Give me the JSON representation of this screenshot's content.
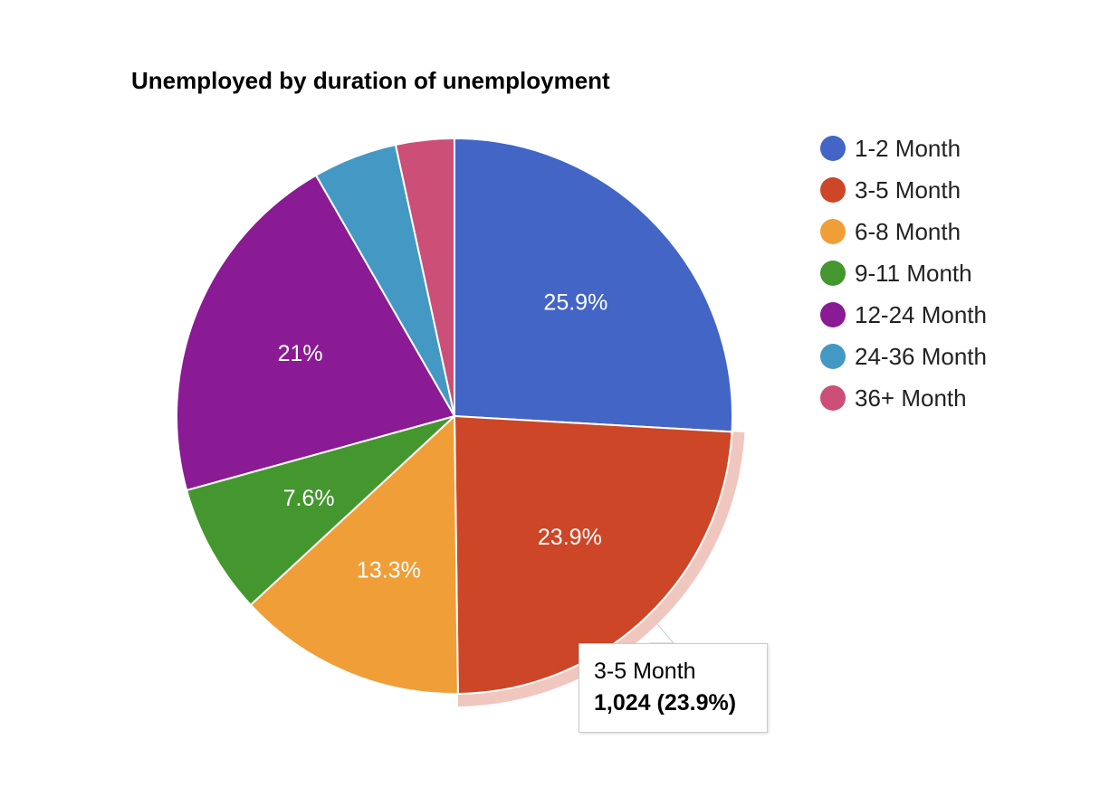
{
  "chart_data": {
    "type": "pie",
    "title": "Unemployed by duration of unemployment",
    "categories": [
      "1-2 Month",
      "3-5 Month",
      "6-8 Month",
      "9-11 Month",
      "12-24 Month",
      "24-36 Month",
      "36+ Month"
    ],
    "values": [
      25.9,
      23.9,
      13.3,
      7.6,
      21,
      4.9,
      3.4
    ],
    "slice_labels": [
      "25.9%",
      "23.9%",
      "13.3%",
      "7.6%",
      "21%",
      "",
      ""
    ],
    "colors": [
      "#4265c6",
      "#cc4627",
      "#f09e38",
      "#44962f",
      "#8b1a95",
      "#4498c4",
      "#cc4f77"
    ],
    "legend_position": "right",
    "highlighted": "3-5 Month",
    "tooltip": {
      "line1": "3-5 Month",
      "line2": "1,024 (23.9%)"
    }
  }
}
